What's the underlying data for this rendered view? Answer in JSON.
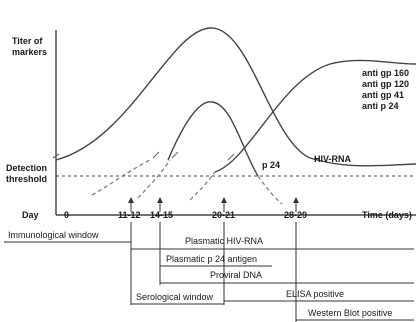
{
  "y_label_lines": [
    "Titer of",
    "markers"
  ],
  "threshold_lines": [
    "Detection",
    "threshold"
  ],
  "day_label": "Day",
  "x_axis_label": "Time (days)",
  "x_ticks": [
    "0",
    "11-12",
    "14-15",
    "20-21",
    "28-29"
  ],
  "marker_labels": {
    "antibodies": [
      "anti gp 160",
      "anti gp 120",
      "anti gp 41",
      "anti p 24"
    ],
    "hiv_rna": "HIV-RNA",
    "p24": "p 24"
  },
  "windows": [
    {
      "label": "Immunological window"
    },
    {
      "label": "Plasmatic HIV-RNA"
    },
    {
      "label": "Plasmatic p 24 antigen"
    },
    {
      "label": "Proviral DNA"
    },
    {
      "label": "Serological window"
    },
    {
      "label": "ELISA positive"
    },
    {
      "label": "Western Blot positive"
    }
  ]
}
